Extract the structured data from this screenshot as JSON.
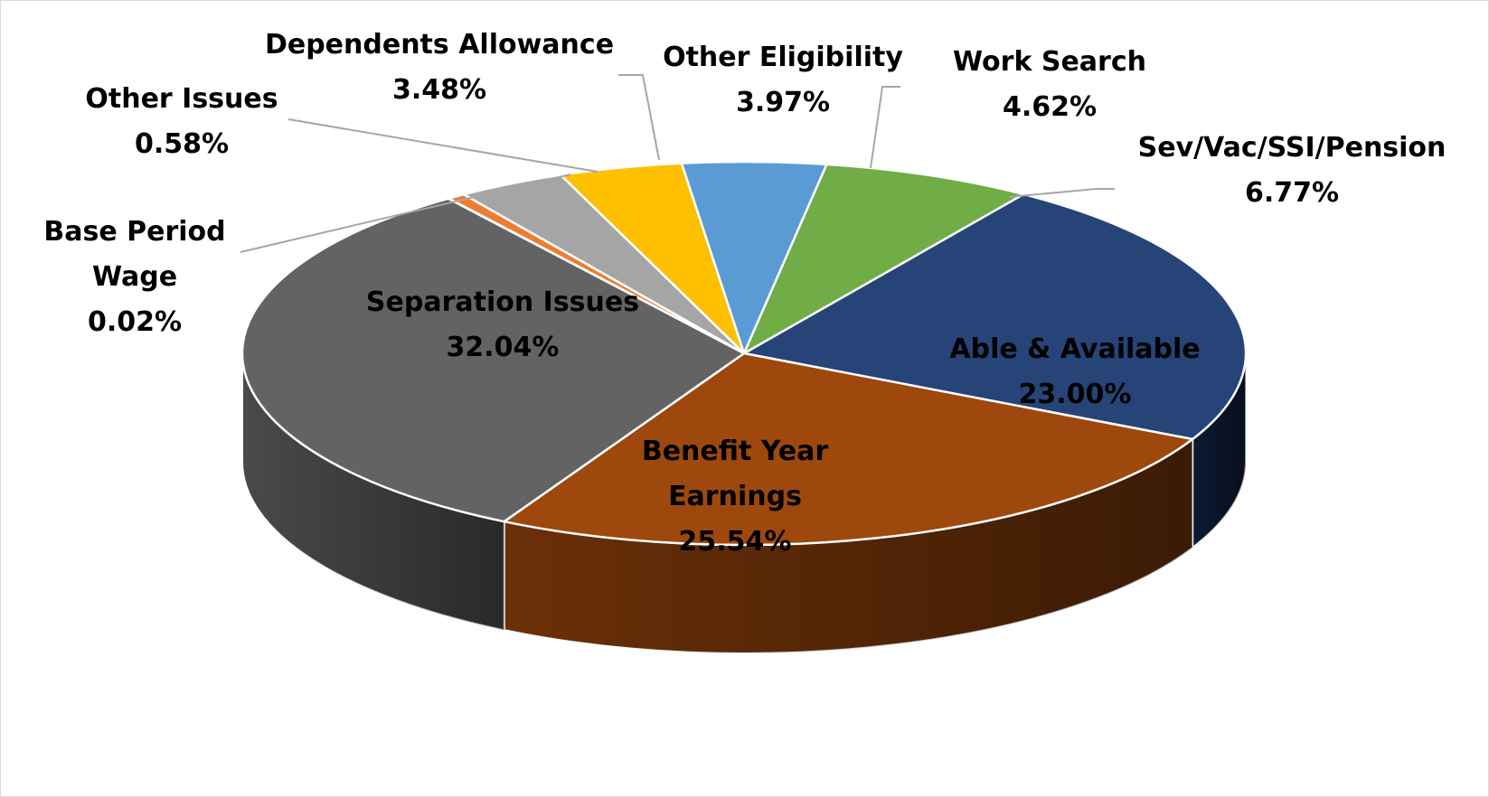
{
  "chart_data": {
    "type": "pie",
    "title": "",
    "start_value": "Sev/Vac/SSI/Pension",
    "slices": [
      {
        "label": "Able & Available",
        "value": 23.0,
        "value_label": "23.00%",
        "color": "#264478",
        "side_color": "#0d1a33",
        "label_placement": "inside"
      },
      {
        "label": "Benefit Year Earnings",
        "value": 25.54,
        "value_label": "25.54%",
        "color": "#9e480e",
        "side_color": "#6b3008",
        "label_placement": "inside"
      },
      {
        "label": "Separation Issues",
        "value": 32.04,
        "value_label": "32.04%",
        "color": "#636363",
        "side_color": "#4a4a4a",
        "label_placement": "inside"
      },
      {
        "label": "Base Period Wage",
        "value": 0.02,
        "value_label": "0.02%",
        "color": "#4472c4",
        "side_color": "#2f528f",
        "label_placement": "outside"
      },
      {
        "label": "Other Issues",
        "value": 0.58,
        "value_label": "0.58%",
        "color": "#ed7d31",
        "side_color": "#c55a11",
        "label_placement": "outside"
      },
      {
        "label": "Dependents Allowance",
        "value": 3.48,
        "value_label": "3.48%",
        "color": "#a5a5a5",
        "side_color": "#7f7f7f",
        "label_placement": "outside"
      },
      {
        "label": "Other Eligibility",
        "value": 3.97,
        "value_label": "3.97%",
        "color": "#ffc000",
        "side_color": "#bf9000",
        "label_placement": "outside"
      },
      {
        "label": "Work Search",
        "value": 4.62,
        "value_label": "4.62%",
        "color": "#5b9bd5",
        "side_color": "#2e75b6",
        "label_placement": "outside"
      },
      {
        "label": "Sev/Vac/SSI/Pension",
        "value": 6.77,
        "value_label": "6.77%",
        "color": "#70ad47",
        "side_color": "#548235",
        "label_placement": "outside"
      }
    ],
    "legend": "none",
    "data_labels": "category name and percentage"
  }
}
